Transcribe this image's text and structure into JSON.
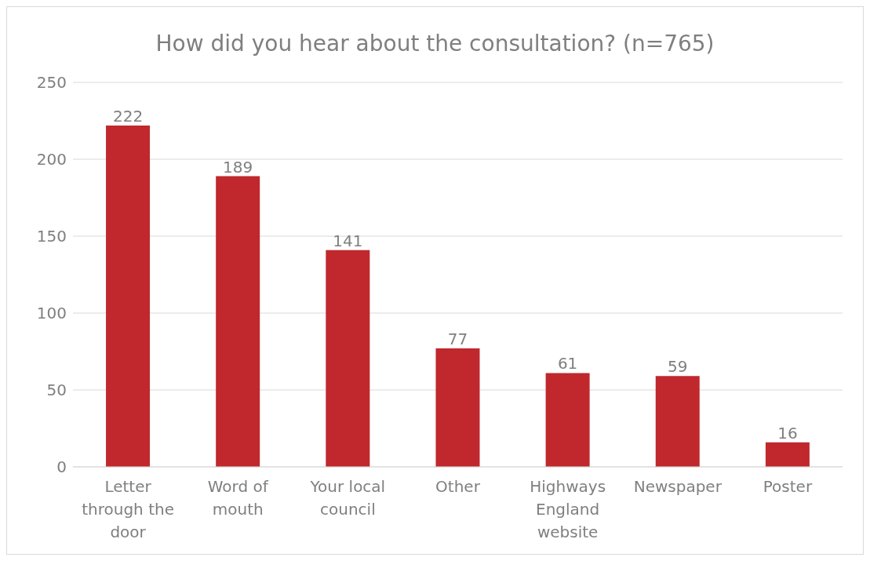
{
  "chart_data": {
    "type": "bar",
    "title": "How did you hear about the consultation? (n=765)",
    "categories": [
      "Letter through the door",
      "Word of mouth",
      "Your local council",
      "Other",
      "Highways England website",
      "Newspaper",
      "Poster"
    ],
    "values": [
      222,
      189,
      141,
      77,
      61,
      59,
      16
    ],
    "color": "#c0282d",
    "ylim": [
      0,
      250
    ],
    "yticks": [
      0,
      50,
      100,
      150,
      200,
      250
    ],
    "grid": "y",
    "data_labels": true,
    "legend": false
  }
}
